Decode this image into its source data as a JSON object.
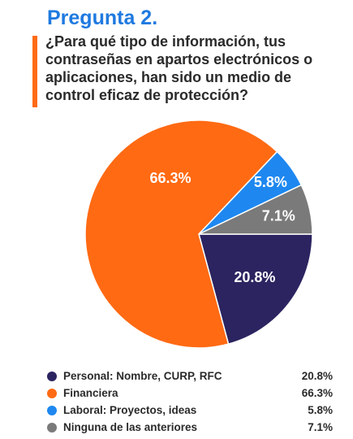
{
  "header": {
    "title": "Pregunta 2.",
    "question": "¿Para qué tipo de información, tus contraseñas en apartos electrónicos o aplicaciones, han sido un medio de control eficaz de protección?"
  },
  "colors": {
    "title": "#1f7ae0",
    "accent": "#ff6a13"
  },
  "chart_data": {
    "type": "pie",
    "slices": [
      {
        "name": "Personal: Nombre, CURP, RFC",
        "value": 20.8,
        "label": "20.8%",
        "legend_value": "20.8%",
        "color": "#2b2460"
      },
      {
        "name": "Financiera",
        "value": 66.3,
        "label": "66.3%",
        "legend_value": "66.3%",
        "color": "#ff6a13"
      },
      {
        "name": "Laboral: Proyectos, ideas",
        "value": 5.8,
        "label": "5.8%",
        "legend_value": "5.8%",
        "color": "#1e88f0"
      },
      {
        "name": "Ninguna de las anteriores",
        "value": 7.1,
        "label": "7.1%",
        "legend_value": "7.1%",
        "color": "#7a7a7a"
      }
    ],
    "legend_position": "bottom"
  }
}
